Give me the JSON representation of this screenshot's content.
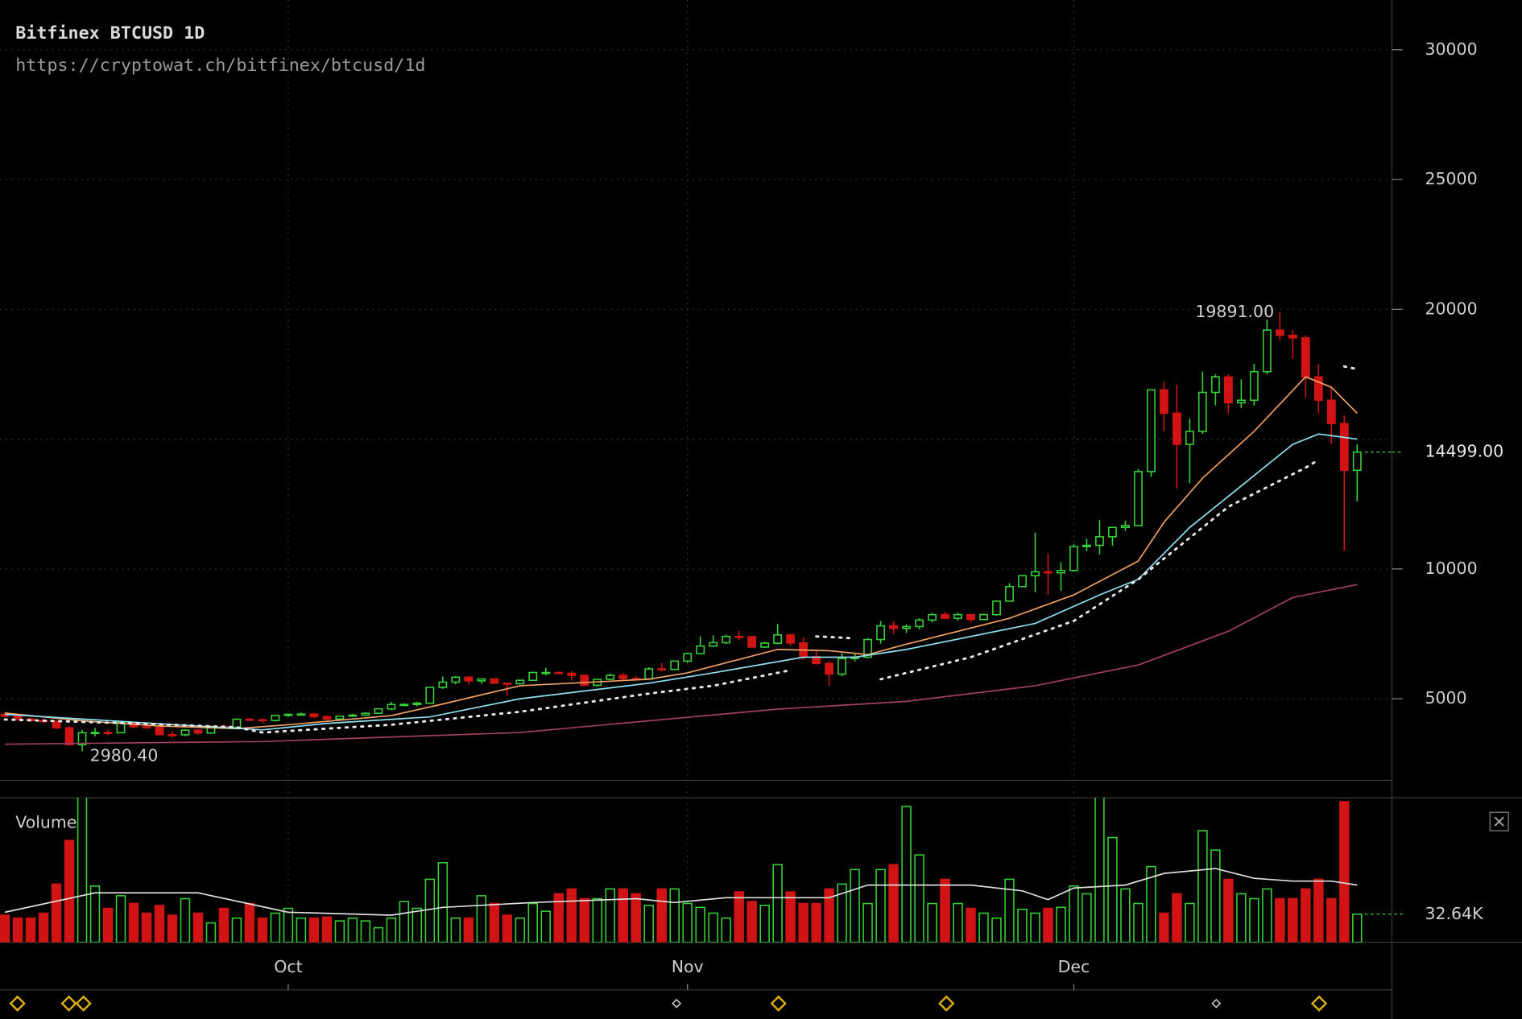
{
  "header": {
    "title": "Bitfinex BTCUSD 1D",
    "url": "https://cryptowat.ch/bitfinex/btcusd/1d"
  },
  "chart_data": {
    "type": "candlestick",
    "volume_label": "Volume",
    "up_color": "#35d335",
    "down_color": "#d01414",
    "grid": true,
    "xlim": [
      -0.38,
      107.7
    ],
    "xticks": [
      {
        "value": 22,
        "label": "Oct"
      },
      {
        "value": 53,
        "label": "Nov"
      },
      {
        "value": 83,
        "label": "Dec"
      }
    ],
    "ylim": [
      1860,
      31916
    ],
    "yticks": [
      5000,
      10000,
      20000,
      25000,
      30000
    ],
    "ygrid": [
      5000,
      10000,
      15000,
      20000,
      25000,
      30000
    ],
    "vlim": [
      0,
      168750
    ],
    "last_price": {
      "value": 14499,
      "label": "14499.00"
    },
    "last_volume": {
      "value": 32640,
      "label": "32.64K"
    },
    "annotations": [
      {
        "text": "19891.00",
        "x": 99,
        "y": 19891
      },
      {
        "text": "2980.40",
        "x": 6,
        "y": 2980.4
      }
    ],
    "open": [
      4400,
      4330,
      4220,
      4160,
      4130,
      3880,
      3230,
      3690,
      3700,
      3690,
      4090,
      3920,
      3900,
      3620,
      3610,
      3790,
      3680,
      3930,
      3890,
      4210,
      4190,
      4160,
      4360,
      4400,
      4410,
      4310,
      4220,
      4330,
      4370,
      4440,
      4610,
      4780,
      4780,
      4830,
      5440,
      5640,
      5830,
      5690,
      5760,
      5600,
      5580,
      5710,
      6010,
      6010,
      5980,
      5900,
      5520,
      5750,
      5900,
      5780,
      5760,
      6150,
      6130,
      6450,
      6740,
      7030,
      7160,
      7400,
      7390,
      6990,
      7140,
      7460,
      7150,
      6620,
      6360,
      5950,
      6550,
      6600,
      7280,
      7810,
      7710,
      7780,
      8030,
      8240,
      8100,
      8240,
      8050,
      8240,
      8760,
      9320,
      9740,
      9890,
      9850,
      9940,
      10860,
      10910,
      11240,
      11600,
      11670,
      13750,
      16900,
      16000,
      14800,
      15300,
      16800,
      17400,
      16400,
      16500,
      17600,
      19200,
      19000,
      18900,
      17400,
      16500,
      15600,
      13800
    ],
    "high": [
      4480,
      4370,
      4260,
      4240,
      4170,
      3960,
      3800,
      3880,
      3790,
      4120,
      4120,
      4050,
      3920,
      3760,
      3820,
      3810,
      3970,
      4000,
      4250,
      4260,
      4240,
      4380,
      4420,
      4470,
      4460,
      4350,
      4350,
      4420,
      4480,
      4620,
      4880,
      4830,
      4880,
      5450,
      5860,
      5870,
      5860,
      5780,
      5780,
      5620,
      5730,
      6040,
      6190,
      6050,
      6070,
      5940,
      5770,
      5980,
      6000,
      5870,
      6210,
      6370,
      6470,
      6760,
      7400,
      7440,
      7470,
      7620,
      7410,
      7200,
      7880,
      7490,
      7360,
      6830,
      6450,
      6750,
      6720,
      7340,
      8000,
      8000,
      7860,
      8100,
      8300,
      8350,
      8320,
      8270,
      8280,
      8780,
      9450,
      9760,
      11400,
      10600,
      10260,
      10960,
      11170,
      11880,
      11620,
      11850,
      13850,
      16900,
      17200,
      17100,
      15800,
      17600,
      17500,
      17500,
      17300,
      17900,
      19600,
      19891,
      19200,
      19000,
      17900,
      17000,
      15900,
      14800
    ],
    "low": [
      4280,
      4150,
      4100,
      4060,
      3830,
      3200,
      2980.4,
      3550,
      3600,
      3680,
      3860,
      3840,
      3580,
      3500,
      3560,
      3620,
      3660,
      3840,
      3870,
      4130,
      4070,
      4120,
      4300,
      4360,
      4250,
      4170,
      4170,
      4310,
      4330,
      4420,
      4560,
      4730,
      4710,
      4820,
      5380,
      5560,
      5550,
      5580,
      5560,
      5120,
      5550,
      5690,
      5900,
      5960,
      5700,
      5480,
      5470,
      5720,
      5700,
      5700,
      5730,
      6050,
      6100,
      6380,
      6730,
      7000,
      7100,
      7250,
      6980,
      6960,
      7090,
      7040,
      6500,
      6300,
      5500,
      5860,
      6440,
      6580,
      7120,
      7500,
      7530,
      7670,
      7940,
      8070,
      8000,
      7950,
      8030,
      8200,
      8740,
      9300,
      9100,
      9000,
      9160,
      9900,
      10690,
      10560,
      10900,
      11470,
      11650,
      13550,
      15300,
      13100,
      13300,
      15200,
      16300,
      16000,
      16200,
      16300,
      17500,
      18800,
      18100,
      16600,
      16000,
      14800,
      10700,
      12600
    ],
    "close": [
      4330,
      4220,
      4160,
      4130,
      3880,
      3230,
      3690,
      3700,
      3690,
      4090,
      3920,
      3900,
      3620,
      3610,
      3790,
      3680,
      3930,
      3890,
      4210,
      4190,
      4160,
      4360,
      4400,
      4410,
      4310,
      4220,
      4330,
      4370,
      4440,
      4610,
      4780,
      4780,
      4830,
      5440,
      5640,
      5830,
      5690,
      5760,
      5600,
      5580,
      5710,
      6010,
      6010,
      5980,
      5900,
      5520,
      5750,
      5900,
      5780,
      5760,
      6150,
      6130,
      6450,
      6740,
      7030,
      7160,
      7400,
      7390,
      6990,
      7140,
      7460,
      7150,
      6620,
      6360,
      5950,
      6550,
      6600,
      7280,
      7810,
      7710,
      7780,
      8030,
      8240,
      8100,
      8240,
      8050,
      8240,
      8760,
      9320,
      9740,
      9890,
      9850,
      9940,
      10860,
      10910,
      11240,
      11600,
      11670,
      13750,
      16900,
      16000,
      14800,
      15300,
      16800,
      17400,
      16400,
      16500,
      17600,
      19200,
      19000,
      18900,
      17400,
      16500,
      15600,
      13800,
      14499
    ],
    "volume": [
      31500,
      28100,
      28100,
      33800,
      67500,
      118100,
      170000,
      65300,
      39400,
      54000,
      45000,
      33800,
      42800,
      31500,
      50600,
      33800,
      22500,
      39400,
      28100,
      45000,
      28100,
      33800,
      39400,
      28100,
      28100,
      29300,
      24800,
      28100,
      24800,
      16900,
      28100,
      47300,
      39400,
      73100,
      92300,
      28100,
      28100,
      54000,
      45000,
      31500,
      28100,
      45000,
      36000,
      56300,
      61900,
      50600,
      50600,
      61900,
      61900,
      56300,
      42800,
      61900,
      61900,
      45000,
      40500,
      33800,
      28100,
      58500,
      47300,
      42800,
      90000,
      58500,
      45000,
      45000,
      61900,
      67500,
      84400,
      45000,
      84400,
      90000,
      157500,
      101300,
      45000,
      73100,
      45000,
      39400,
      33800,
      28100,
      73100,
      38300,
      33800,
      39400,
      40500,
      65300,
      56300,
      170000,
      121500,
      61900,
      45000,
      87800,
      33800,
      56300,
      45000,
      129400,
      106900,
      73100,
      56300,
      50600,
      61900,
      50600,
      50600,
      61900,
      73100,
      50600,
      163100,
      32640
    ],
    "overlays": [
      {
        "color": "#f0a060",
        "x": [
          0,
          6,
          12,
          18,
          22,
          30,
          34,
          40,
          50,
          53,
          60,
          64,
          67,
          70,
          78,
          83,
          88,
          90,
          93,
          97,
          101,
          103,
          105
        ],
        "values": [
          4450,
          4150,
          3950,
          3850,
          4000,
          4350,
          4800,
          5500,
          5750,
          6000,
          6900,
          6850,
          6700,
          7100,
          8100,
          9000,
          10300,
          11800,
          13500,
          15300,
          17400,
          17000,
          16000
        ]
      },
      {
        "color": "#8ee0f0",
        "x": [
          0,
          10,
          20,
          25,
          33,
          40,
          50,
          55,
          62,
          66,
          70,
          80,
          85,
          88,
          92,
          96,
          100,
          102,
          105
        ],
        "values": [
          4400,
          4100,
          3800,
          4050,
          4300,
          5000,
          5600,
          6000,
          6600,
          6600,
          6900,
          7900,
          9000,
          9600,
          11600,
          13200,
          14800,
          15200,
          15000
        ]
      },
      {
        "color": "#e8e8e8",
        "dash": true,
        "x": [
          0,
          10,
          18,
          20,
          30,
          40,
          50,
          55,
          61,
          62,
          63,
          64,
          65,
          66,
          67,
          68,
          75,
          83,
          88,
          95,
          101,
          102,
          103,
          104,
          105
        ],
        "values": [
          4200,
          4050,
          3900,
          3700,
          4000,
          4500,
          5200,
          5500,
          6100,
          null,
          7400,
          7380,
          7350,
          7320,
          null,
          5750,
          6600,
          8000,
          9600,
          12400,
          13900,
          14200,
          null,
          17800,
          17700
        ]
      },
      {
        "color": "#a04060",
        "x": [
          0,
          20,
          40,
          60,
          70,
          80,
          88,
          95,
          100,
          105
        ],
        "values": [
          3250,
          3350,
          3700,
          4600,
          4900,
          5500,
          6300,
          7600,
          8900,
          9400
        ]
      },
      {
        "color": "#dddddd",
        "panel": "volume",
        "x": [
          0,
          7,
          15,
          22,
          30,
          34,
          41,
          49,
          52,
          56,
          64,
          67,
          75,
          79,
          81,
          83,
          87,
          90,
          94,
          97,
          100,
          103,
          105
        ],
        "values": [
          34900,
          57400,
          57400,
          34900,
          31500,
          40500,
          46100,
          50600,
          46100,
          51800,
          51800,
          66400,
          66400,
          59600,
          49500,
          63000,
          66400,
          79900,
          85500,
          74300,
          71000,
          71000,
          66400
        ]
      }
    ]
  }
}
